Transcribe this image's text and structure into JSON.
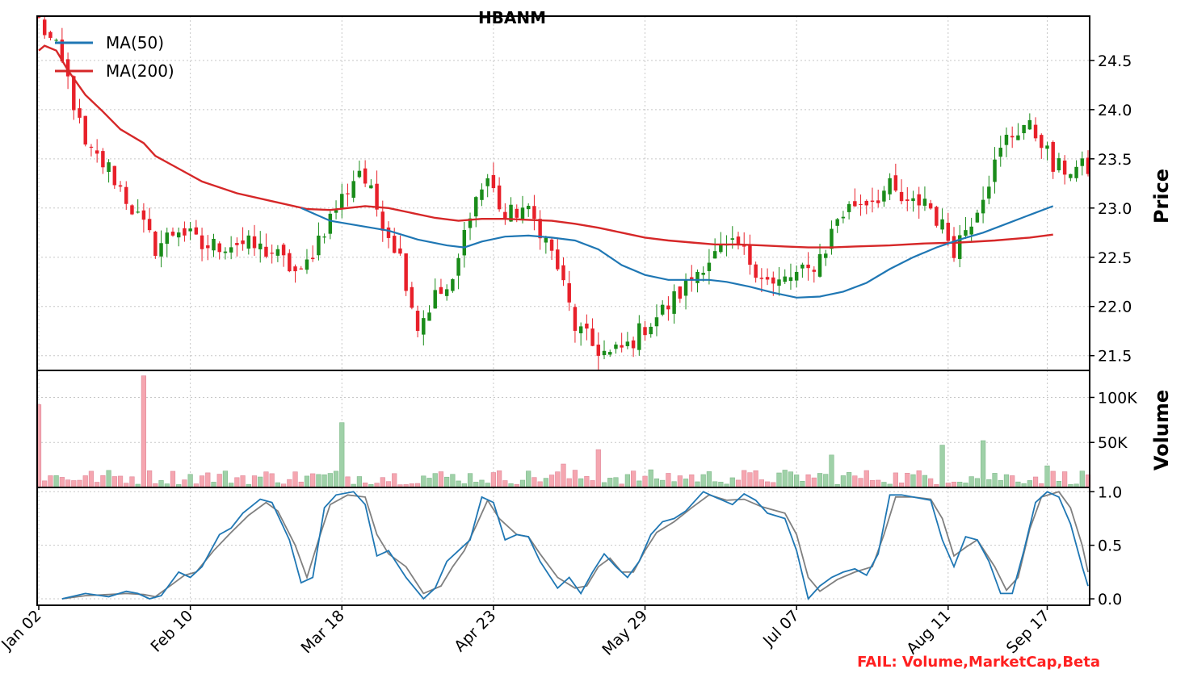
{
  "chart_data": {
    "type": "candlestick",
    "title": "HBANM",
    "x_tick_labels": [
      "Jan 02",
      "Feb 10",
      "Mar 18",
      "Apr 23",
      "May 29",
      "Jul 07",
      "Aug 11",
      "Sep 17"
    ],
    "price_panel": {
      "ylabel": "Price",
      "ylim": [
        21.35,
        24.95
      ],
      "yticks": [
        21.5,
        22.0,
        22.5,
        23.0,
        23.5,
        24.0,
        24.5
      ],
      "ytick_labels": [
        "21.5",
        "22.0",
        "22.5",
        "23.0",
        "23.5",
        "24.0",
        "24.5"
      ],
      "up_color": "#1a8c1a",
      "down_color": "#e8202a",
      "legend": [
        {
          "name": "MA(50)",
          "color": "#1f77b4"
        },
        {
          "name": "MA(200)",
          "color": "#d62728"
        }
      ],
      "close_keypoints": [
        [
          0,
          24.9
        ],
        [
          3,
          24.6
        ],
        [
          5,
          24.3
        ],
        [
          8,
          23.6
        ],
        [
          12,
          23.4
        ],
        [
          16,
          23.0
        ],
        [
          20,
          22.6
        ],
        [
          24,
          22.8
        ],
        [
          28,
          22.6
        ],
        [
          34,
          22.65
        ],
        [
          40,
          22.55
        ],
        [
          45,
          22.3
        ],
        [
          48,
          22.7
        ],
        [
          52,
          23.1
        ],
        [
          55,
          23.4
        ],
        [
          58,
          23.0
        ],
        [
          62,
          22.5
        ],
        [
          65,
          21.8
        ],
        [
          68,
          22.1
        ],
        [
          71,
          22.2
        ],
        [
          74,
          23.0
        ],
        [
          77,
          23.3
        ],
        [
          80,
          22.9
        ],
        [
          83,
          23.0
        ],
        [
          86,
          22.8
        ],
        [
          89,
          22.4
        ],
        [
          92,
          21.8
        ],
        [
          95,
          21.6
        ],
        [
          98,
          21.5
        ],
        [
          101,
          21.6
        ],
        [
          104,
          21.8
        ],
        [
          107,
          21.95
        ],
        [
          111,
          22.2
        ],
        [
          114,
          22.45
        ],
        [
          117,
          22.55
        ],
        [
          120,
          22.6
        ],
        [
          123,
          22.4
        ],
        [
          126,
          22.2
        ],
        [
          129,
          22.3
        ],
        [
          132,
          22.35
        ],
        [
          135,
          22.6
        ],
        [
          137,
          22.9
        ],
        [
          140,
          23.05
        ],
        [
          143,
          23.1
        ],
        [
          146,
          23.2
        ],
        [
          149,
          23.0
        ],
        [
          152,
          23.1
        ],
        [
          155,
          22.8
        ],
        [
          157,
          22.6
        ],
        [
          160,
          22.9
        ],
        [
          163,
          23.3
        ],
        [
          166,
          23.7
        ],
        [
          169,
          23.85
        ],
        [
          172,
          23.7
        ],
        [
          174,
          23.4
        ]
      ],
      "ma50_keypoints": [
        [
          45,
          23.0
        ],
        [
          50,
          22.87
        ],
        [
          55,
          22.82
        ],
        [
          60,
          22.77
        ],
        [
          65,
          22.68
        ],
        [
          70,
          22.62
        ],
        [
          73,
          22.6
        ],
        [
          76,
          22.66
        ],
        [
          80,
          22.71
        ],
        [
          84,
          22.72
        ],
        [
          88,
          22.7
        ],
        [
          92,
          22.67
        ],
        [
          96,
          22.58
        ],
        [
          100,
          22.42
        ],
        [
          104,
          22.32
        ],
        [
          108,
          22.27
        ],
        [
          112,
          22.27
        ],
        [
          115,
          22.27
        ],
        [
          118,
          22.25
        ],
        [
          122,
          22.2
        ],
        [
          126,
          22.14
        ],
        [
          130,
          22.09
        ],
        [
          134,
          22.1
        ],
        [
          138,
          22.15
        ],
        [
          142,
          22.24
        ],
        [
          146,
          22.38
        ],
        [
          150,
          22.5
        ],
        [
          154,
          22.6
        ],
        [
          158,
          22.68
        ],
        [
          162,
          22.75
        ],
        [
          166,
          22.84
        ],
        [
          170,
          22.93
        ],
        [
          174,
          23.02
        ]
      ],
      "ma200_keypoints": [
        [
          0,
          24.6
        ],
        [
          1,
          24.65
        ],
        [
          3,
          24.6
        ],
        [
          5,
          24.4
        ],
        [
          8,
          24.15
        ],
        [
          11,
          23.98
        ],
        [
          14,
          23.8
        ],
        [
          18,
          23.66
        ],
        [
          20,
          23.53
        ],
        [
          24,
          23.4
        ],
        [
          28,
          23.27
        ],
        [
          34,
          23.15
        ],
        [
          40,
          23.07
        ],
        [
          46,
          22.99
        ],
        [
          50,
          22.98
        ],
        [
          56,
          23.02
        ],
        [
          60,
          23.0
        ],
        [
          64,
          22.95
        ],
        [
          68,
          22.9
        ],
        [
          72,
          22.87
        ],
        [
          76,
          22.89
        ],
        [
          80,
          22.89
        ],
        [
          84,
          22.88
        ],
        [
          88,
          22.87
        ],
        [
          92,
          22.84
        ],
        [
          96,
          22.8
        ],
        [
          100,
          22.75
        ],
        [
          104,
          22.7
        ],
        [
          108,
          22.67
        ],
        [
          112,
          22.65
        ],
        [
          116,
          22.63
        ],
        [
          120,
          22.63
        ],
        [
          124,
          22.62
        ],
        [
          128,
          22.61
        ],
        [
          132,
          22.6
        ],
        [
          136,
          22.6
        ],
        [
          140,
          22.61
        ],
        [
          146,
          22.62
        ],
        [
          152,
          22.64
        ],
        [
          158,
          22.65
        ],
        [
          164,
          22.67
        ],
        [
          170,
          22.7
        ],
        [
          174,
          22.73
        ]
      ]
    },
    "volume_panel": {
      "ylabel": "Volume",
      "ylim": [
        0,
        130000
      ],
      "yticks": [
        50000,
        100000
      ],
      "ytick_labels": [
        "50K",
        "100K"
      ],
      "up_color": "#9fd1a8",
      "down_color": "#f5a6b0",
      "spikes": [
        [
          0,
          92000
        ],
        [
          18,
          124000
        ],
        [
          52,
          72000
        ],
        [
          90,
          26000
        ],
        [
          96,
          42000
        ],
        [
          136,
          36000
        ],
        [
          155,
          47000
        ],
        [
          162,
          52000
        ],
        [
          173,
          24000
        ]
      ]
    },
    "stochastic_panel": {
      "ylim": [
        -0.06,
        1.04
      ],
      "yticks": [
        0.0,
        0.5,
        1.0
      ],
      "ytick_labels": [
        "0.0",
        "0.5",
        "1.0"
      ],
      "k_color": "#1f77b4",
      "d_color": "#808080",
      "k_keypoints": [
        [
          4,
          0.0
        ],
        [
          8,
          0.05
        ],
        [
          12,
          0.02
        ],
        [
          15,
          0.07
        ],
        [
          17,
          0.05
        ],
        [
          19,
          0.0
        ],
        [
          21,
          0.03
        ],
        [
          24,
          0.25
        ],
        [
          26,
          0.2
        ],
        [
          28,
          0.3
        ],
        [
          31,
          0.6
        ],
        [
          33,
          0.66
        ],
        [
          35,
          0.8
        ],
        [
          38,
          0.93
        ],
        [
          40,
          0.9
        ],
        [
          43,
          0.55
        ],
        [
          45,
          0.15
        ],
        [
          47,
          0.2
        ],
        [
          49,
          0.85
        ],
        [
          51,
          0.97
        ],
        [
          54,
          1.0
        ],
        [
          56,
          0.88
        ],
        [
          58,
          0.4
        ],
        [
          60,
          0.45
        ],
        [
          63,
          0.2
        ],
        [
          66,
          0.0
        ],
        [
          68,
          0.1
        ],
        [
          70,
          0.35
        ],
        [
          72,
          0.45
        ],
        [
          74,
          0.55
        ],
        [
          76,
          0.95
        ],
        [
          78,
          0.9
        ],
        [
          80,
          0.55
        ],
        [
          82,
          0.6
        ],
        [
          84,
          0.58
        ],
        [
          86,
          0.35
        ],
        [
          89,
          0.1
        ],
        [
          91,
          0.2
        ],
        [
          93,
          0.05
        ],
        [
          95,
          0.25
        ],
        [
          97,
          0.42
        ],
        [
          99,
          0.3
        ],
        [
          101,
          0.2
        ],
        [
          103,
          0.35
        ],
        [
          105,
          0.6
        ],
        [
          107,
          0.72
        ],
        [
          109,
          0.75
        ],
        [
          111,
          0.82
        ],
        [
          114,
          1.0
        ],
        [
          116,
          0.95
        ],
        [
          119,
          0.88
        ],
        [
          121,
          0.98
        ],
        [
          123,
          0.92
        ],
        [
          125,
          0.8
        ],
        [
          128,
          0.75
        ],
        [
          130,
          0.45
        ],
        [
          132,
          0.0
        ],
        [
          134,
          0.12
        ],
        [
          136,
          0.2
        ],
        [
          138,
          0.25
        ],
        [
          140,
          0.28
        ],
        [
          142,
          0.22
        ],
        [
          144,
          0.42
        ],
        [
          146,
          0.97
        ],
        [
          148,
          0.97
        ],
        [
          150,
          0.95
        ],
        [
          153,
          0.92
        ],
        [
          155,
          0.55
        ],
        [
          157,
          0.3
        ],
        [
          159,
          0.58
        ],
        [
          161,
          0.55
        ],
        [
          163,
          0.35
        ],
        [
          165,
          0.05
        ],
        [
          167,
          0.05
        ],
        [
          169,
          0.45
        ],
        [
          171,
          0.9
        ],
        [
          173,
          1.0
        ],
        [
          175,
          0.95
        ],
        [
          177,
          0.7
        ],
        [
          179,
          0.3
        ],
        [
          180,
          0.12
        ]
      ],
      "d_keypoints": [
        [
          4,
          0.0
        ],
        [
          8,
          0.03
        ],
        [
          12,
          0.04
        ],
        [
          15,
          0.05
        ],
        [
          18,
          0.04
        ],
        [
          20,
          0.02
        ],
        [
          22,
          0.1
        ],
        [
          25,
          0.22
        ],
        [
          27,
          0.25
        ],
        [
          30,
          0.45
        ],
        [
          33,
          0.62
        ],
        [
          36,
          0.78
        ],
        [
          39,
          0.9
        ],
        [
          41,
          0.82
        ],
        [
          44,
          0.5
        ],
        [
          46,
          0.2
        ],
        [
          48,
          0.55
        ],
        [
          50,
          0.88
        ],
        [
          53,
          0.97
        ],
        [
          56,
          0.95
        ],
        [
          58,
          0.6
        ],
        [
          60,
          0.42
        ],
        [
          63,
          0.3
        ],
        [
          66,
          0.05
        ],
        [
          69,
          0.12
        ],
        [
          71,
          0.3
        ],
        [
          73,
          0.45
        ],
        [
          75,
          0.68
        ],
        [
          77,
          0.92
        ],
        [
          79,
          0.75
        ],
        [
          82,
          0.6
        ],
        [
          84,
          0.58
        ],
        [
          86,
          0.42
        ],
        [
          89,
          0.2
        ],
        [
          92,
          0.1
        ],
        [
          94,
          0.12
        ],
        [
          96,
          0.3
        ],
        [
          98,
          0.38
        ],
        [
          100,
          0.25
        ],
        [
          102,
          0.25
        ],
        [
          104,
          0.45
        ],
        [
          106,
          0.62
        ],
        [
          109,
          0.72
        ],
        [
          112,
          0.85
        ],
        [
          115,
          0.97
        ],
        [
          118,
          0.92
        ],
        [
          121,
          0.93
        ],
        [
          124,
          0.86
        ],
        [
          128,
          0.8
        ],
        [
          130,
          0.6
        ],
        [
          132,
          0.2
        ],
        [
          134,
          0.07
        ],
        [
          137,
          0.18
        ],
        [
          140,
          0.25
        ],
        [
          143,
          0.3
        ],
        [
          145,
          0.6
        ],
        [
          147,
          0.95
        ],
        [
          150,
          0.95
        ],
        [
          153,
          0.93
        ],
        [
          155,
          0.75
        ],
        [
          157,
          0.4
        ],
        [
          159,
          0.48
        ],
        [
          161,
          0.55
        ],
        [
          164,
          0.3
        ],
        [
          166,
          0.08
        ],
        [
          168,
          0.2
        ],
        [
          170,
          0.65
        ],
        [
          172,
          0.95
        ],
        [
          175,
          1.0
        ],
        [
          177,
          0.85
        ],
        [
          179,
          0.5
        ],
        [
          180,
          0.25
        ]
      ]
    },
    "grid": true,
    "legend_position": "top-left",
    "annotation": "FAIL: Volume,MarketCap,Beta"
  }
}
